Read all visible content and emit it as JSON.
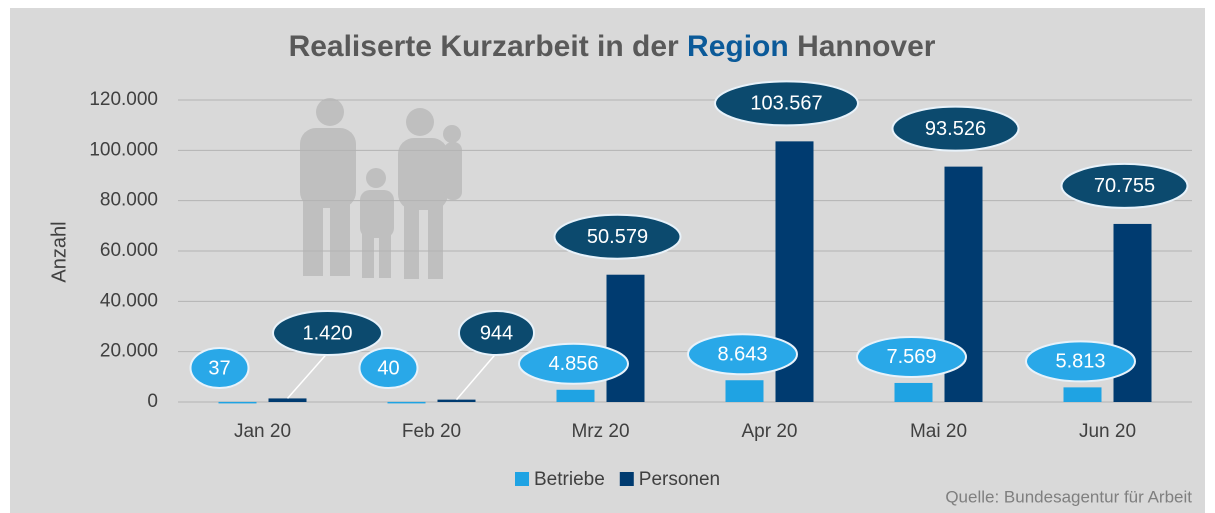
{
  "chart_data": {
    "type": "bar",
    "title": [
      "Realiserte Kurzarbeit in der",
      "Region",
      "Hannover"
    ],
    "y_label": "Anzahl",
    "source": "Quelle: Bundesagentur für Arbeit",
    "categories": [
      "Jan 20",
      "Feb 20",
      "Mrz 20",
      "Apr 20",
      "Mai 20",
      "Jun 20"
    ],
    "series": [
      {
        "name": "Betriebe",
        "color": "#1fa3e3",
        "values": [
          37,
          40,
          4856,
          8643,
          7569,
          5813
        ],
        "value_labels": [
          "37",
          "40",
          "4.856",
          "8.643",
          "7.569",
          "5.813"
        ]
      },
      {
        "name": "Personen",
        "color": "#003b70",
        "values": [
          1420,
          944,
          50579,
          103567,
          93526,
          70755
        ],
        "value_labels": [
          "1.420",
          "944",
          "50.579",
          "103.567",
          "93.526",
          "70.755"
        ]
      }
    ],
    "ylim": [
      0,
      120000
    ],
    "yticks": [
      0,
      {
        "value": 20000,
        "label": "20.000"
      },
      {
        "value": 40000,
        "label": "40.000"
      },
      {
        "value": 60000,
        "label": "60.000"
      },
      {
        "value": 80000,
        "label": "80.000"
      },
      {
        "value": 100000,
        "label": "100.000"
      },
      {
        "value": 120000,
        "label": "120.000"
      }
    ],
    "grid": true,
    "legend": "bottom"
  }
}
